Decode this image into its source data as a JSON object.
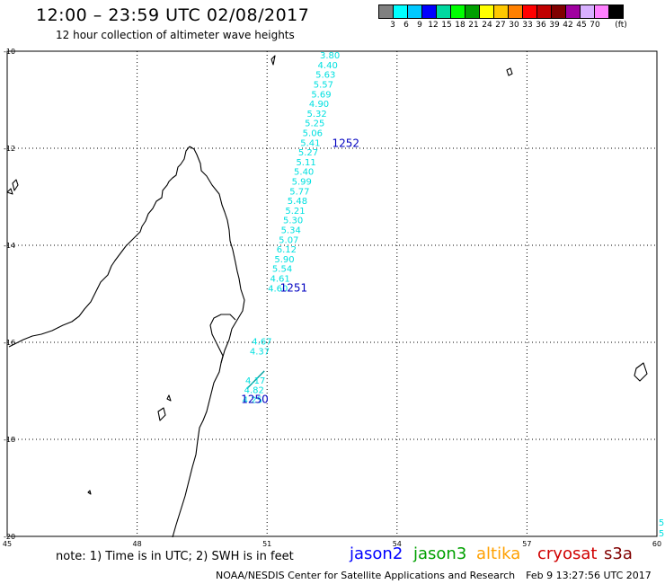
{
  "header": {
    "title": "12:00 – 23:59 UTC 02/08/2017",
    "subtitle": "12 hour collection of altimeter wave heights"
  },
  "scale": {
    "unit": "(ft)",
    "colors": [
      "#808080",
      "#00ffff",
      "#00c8ff",
      "#0000ff",
      "#00d8a0",
      "#00ff00",
      "#00a000",
      "#ffff00",
      "#ffc800",
      "#ff8000",
      "#ff0000",
      "#c00000",
      "#800000",
      "#a000a0",
      "#d8b0ff",
      "#ff80ff",
      "#000000"
    ],
    "labels": [
      "3",
      "6",
      "9",
      "12",
      "15",
      "18",
      "21",
      "24",
      "27",
      "30",
      "33",
      "36",
      "39",
      "42",
      "45",
      "70"
    ]
  },
  "map": {
    "lat_ticks": [
      "-10",
      "-12",
      "-14",
      "-16",
      "-18",
      "-20"
    ],
    "lon_ticks": [
      "45",
      "48",
      "51",
      "54",
      "57",
      "60"
    ],
    "track_color": "#00e0e0",
    "pass_color": "#0000c0",
    "tracks": [
      {
        "pass": "1252",
        "pass_label_pos": {
          "lat": -11.97,
          "lon": 52.5
        },
        "points": [
          {
            "lat": -10.15,
            "lon": 52.45,
            "swh": "3.80"
          },
          {
            "lat": -10.35,
            "lon": 52.4,
            "swh": "4.40"
          },
          {
            "lat": -10.55,
            "lon": 52.35,
            "swh": "5.63"
          },
          {
            "lat": -10.75,
            "lon": 52.3,
            "swh": "5.57"
          },
          {
            "lat": -10.95,
            "lon": 52.25,
            "swh": "5.69"
          },
          {
            "lat": -11.15,
            "lon": 52.2,
            "swh": "4.90"
          },
          {
            "lat": -11.35,
            "lon": 52.15,
            "swh": "5.32"
          },
          {
            "lat": -11.55,
            "lon": 52.1,
            "swh": "5.25"
          },
          {
            "lat": -11.75,
            "lon": 52.05,
            "swh": "5.06"
          },
          {
            "lat": -11.95,
            "lon": 52.0,
            "swh": "5.41"
          },
          {
            "lat": -12.15,
            "lon": 51.95,
            "swh": "5.27"
          },
          {
            "lat": -12.35,
            "lon": 51.9,
            "swh": "5.11"
          },
          {
            "lat": -12.55,
            "lon": 51.85,
            "swh": "5.40"
          },
          {
            "lat": -12.75,
            "lon": 51.8,
            "swh": "5.99"
          },
          {
            "lat": -12.95,
            "lon": 51.75,
            "swh": "5.77"
          },
          {
            "lat": -13.15,
            "lon": 51.7,
            "swh": "5.48"
          },
          {
            "lat": -13.35,
            "lon": 51.65,
            "swh": "5.21"
          },
          {
            "lat": -13.55,
            "lon": 51.6,
            "swh": "5.30"
          },
          {
            "lat": -13.75,
            "lon": 51.55,
            "swh": "5.34"
          },
          {
            "lat": -13.95,
            "lon": 51.5,
            "swh": "5.07"
          }
        ]
      },
      {
        "pass": "1251",
        "pass_label_pos": {
          "lat": -14.95,
          "lon": 51.3
        },
        "points": [
          {
            "lat": -14.15,
            "lon": 51.45,
            "swh": "6.12"
          },
          {
            "lat": -14.35,
            "lon": 51.4,
            "swh": "5.90"
          },
          {
            "lat": -14.55,
            "lon": 51.35,
            "swh": "5.54"
          },
          {
            "lat": -14.75,
            "lon": 51.3,
            "swh": "4.61"
          },
          {
            "lat": -14.95,
            "lon": 51.25,
            "swh": "4.60"
          }
        ]
      },
      {
        "pass": "1250",
        "pass_label_pos": {
          "lat": -17.25,
          "lon": 50.4
        },
        "points": [
          {
            "lat": -16.05,
            "lon": 50.88,
            "swh": "4.67"
          },
          {
            "lat": -16.25,
            "lon": 50.83,
            "swh": "4.37"
          },
          {
            "lat": -16.85,
            "lon": 50.73,
            "swh": "4.17"
          },
          {
            "lat": -17.05,
            "lon": 50.7,
            "swh": "4.82"
          },
          {
            "lat": -17.25,
            "lon": 50.66,
            "swh": "4.25"
          }
        ]
      }
    ],
    "edge_marks": [
      "5",
      "5"
    ]
  },
  "footer": {
    "note": "note: 1) Time is in UTC; 2) SWH is in feet",
    "legend": [
      {
        "label": "jason2",
        "color": "#0000ff"
      },
      {
        "label": "jason3",
        "color": "#00a000"
      },
      {
        "label": "altika",
        "color": "#ffa000"
      },
      {
        "label": "cryosat",
        "color": "#d00000"
      },
      {
        "label": "s3a",
        "color": "#800000"
      }
    ],
    "credit": "NOAA/NESDIS Center for Satellite Applications and Research",
    "timestamp": "Feb  9 13:27:56 UTC 2017"
  }
}
